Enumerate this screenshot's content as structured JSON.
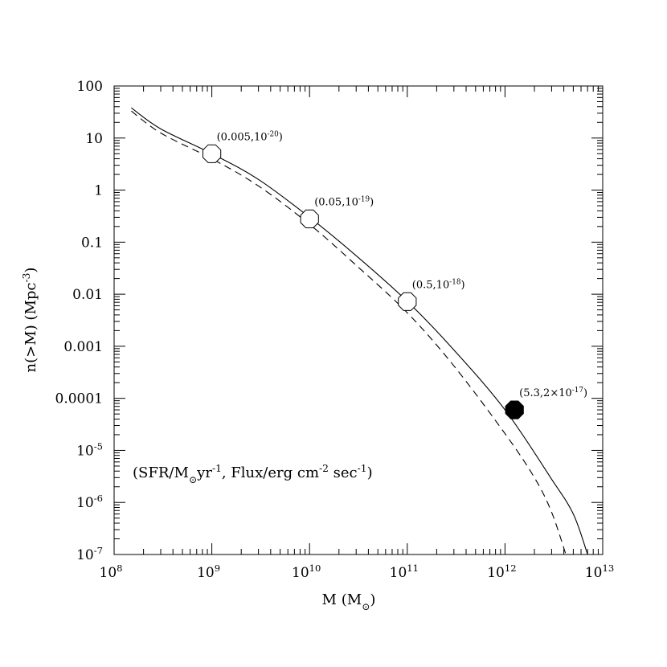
{
  "chart_data": {
    "type": "line",
    "title": "",
    "xlabel": {
      "text": "M (M",
      "sub": "⊙",
      "end": ")"
    },
    "ylabel": {
      "text": "n(>M) (Mpc",
      "sup": "-3",
      "end": ")"
    },
    "x_scale": "log",
    "y_scale": "log",
    "xlim": [
      100000000.0,
      10000000000000.0
    ],
    "ylim": [
      1e-07,
      100
    ],
    "x_ticks": [
      {
        "value": 100000000.0,
        "base": "10",
        "exp": "8"
      },
      {
        "value": 1000000000.0,
        "base": "10",
        "exp": "9"
      },
      {
        "value": 10000000000.0,
        "base": "10",
        "exp": "10"
      },
      {
        "value": 100000000000.0,
        "base": "10",
        "exp": "11"
      },
      {
        "value": 1000000000000.0,
        "base": "10",
        "exp": "12"
      },
      {
        "value": 10000000000000.0,
        "base": "10",
        "exp": "13"
      }
    ],
    "y_ticks": [
      {
        "value": 100,
        "base": "100",
        "exp": ""
      },
      {
        "value": 10,
        "base": "10",
        "exp": ""
      },
      {
        "value": 1,
        "base": "1",
        "exp": ""
      },
      {
        "value": 0.1,
        "base": "0.1",
        "exp": ""
      },
      {
        "value": 0.01,
        "base": "0.01",
        "exp": ""
      },
      {
        "value": 0.001,
        "base": "0.001",
        "exp": ""
      },
      {
        "value": 0.0001,
        "base": "0.0001",
        "exp": ""
      },
      {
        "value": 1e-05,
        "base": "10",
        "exp": "-5"
      },
      {
        "value": 1e-06,
        "base": "10",
        "exp": "-6"
      },
      {
        "value": 1e-07,
        "base": "10",
        "exp": "-7"
      }
    ],
    "series": [
      {
        "style": "solid",
        "x": [
          150000000.0,
          300000000.0,
          1000000000.0,
          3000000000.0,
          10000000000.0,
          30000000000.0,
          100000000000.0,
          300000000000.0,
          1000000000000.0,
          3000000000000.0,
          5000000000000.0,
          7000000000000.0
        ],
        "y": [
          38,
          15,
          5,
          1.6,
          0.3,
          0.055,
          0.0073,
          0.00085,
          6e-05,
          2.8e-06,
          6e-07,
          1e-07
        ]
      },
      {
        "style": "dashed",
        "x": [
          150000000.0,
          300000000.0,
          1000000000.0,
          3000000000.0,
          10000000000.0,
          30000000000.0,
          100000000000.0,
          300000000000.0,
          1000000000000.0,
          2000000000000.0,
          3000000000000.0,
          4200000000000.0
        ],
        "y": [
          33,
          12.5,
          4,
          1.2,
          0.22,
          0.036,
          0.0044,
          0.00042,
          2.1e-05,
          3e-06,
          6.5e-07,
          1e-07
        ]
      }
    ],
    "markers": [
      {
        "x": 1000000000.0,
        "y": 5,
        "filled": false,
        "label": "(0.005,10",
        "label_sup": "-20",
        "label_end": ")"
      },
      {
        "x": 10000000000.0,
        "y": 0.28,
        "filled": false,
        "label": "(0.05,10",
        "label_sup": "-19",
        "label_end": ")"
      },
      {
        "x": 100000000000.0,
        "y": 0.0072,
        "filled": false,
        "label": "(0.5,10",
        "label_sup": "-18",
        "label_end": ")"
      },
      {
        "x": 1250000000000.0,
        "y": 6e-05,
        "filled": true,
        "label": "(5.3,2×10",
        "label_sup": "-17",
        "label_end": ")"
      }
    ],
    "annotation": {
      "parts": [
        {
          "t": "(SFR/M",
          "k": "n"
        },
        {
          "t": "⊙",
          "k": "sub"
        },
        {
          "t": "yr",
          "k": "n"
        },
        {
          "t": "-1",
          "k": "sup"
        },
        {
          "t": ", Flux/erg cm",
          "k": "n"
        },
        {
          "t": "-2",
          "k": "sup"
        },
        {
          "t": " sec",
          "k": "n"
        },
        {
          "t": "-1",
          "k": "sup"
        },
        {
          "t": ")",
          "k": "n"
        }
      ]
    },
    "grid": false,
    "colors": {
      "line": "#000000",
      "background": "#ffffff"
    }
  }
}
